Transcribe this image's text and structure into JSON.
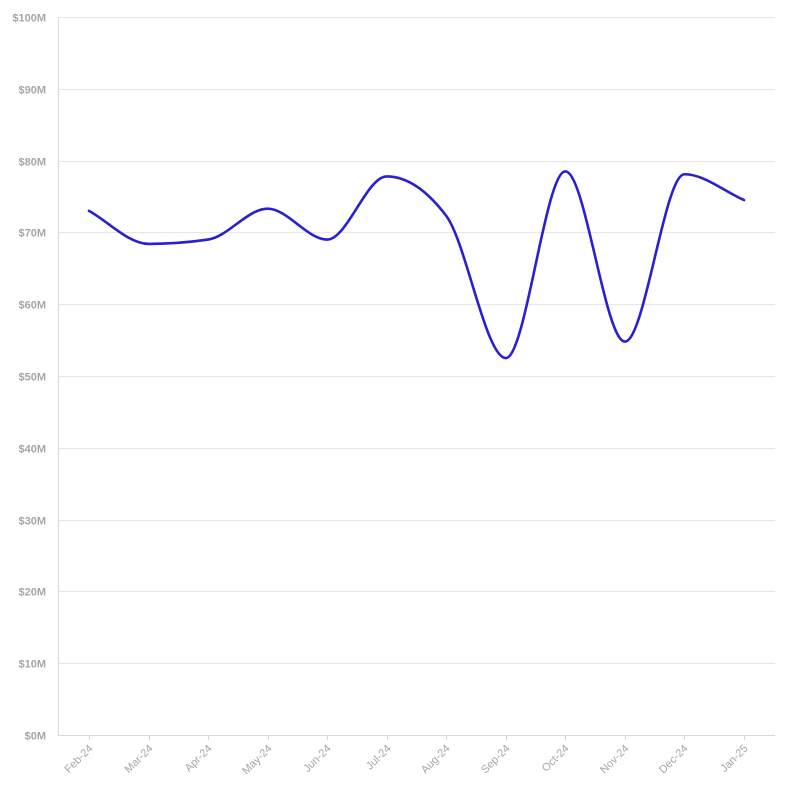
{
  "chart_data": {
    "type": "line",
    "title": "",
    "xlabel": "",
    "ylabel": "",
    "categories": [
      "Feb-24",
      "Mar-24",
      "Apr-24",
      "May-24",
      "Jun-24",
      "Jul-24",
      "Aug-24",
      "Sep-24",
      "Oct-24",
      "Nov-24",
      "Dec-24",
      "Jan-25"
    ],
    "series": [
      {
        "values": [
          73.0,
          68.4,
          69.0,
          73.3,
          69.0,
          77.8,
          72.3,
          52.5,
          78.5,
          54.8,
          78.1,
          74.5
        ],
        "color": "#2a1fd1"
      }
    ],
    "ylim": [
      0,
      100
    ],
    "y_ticks": [
      0,
      10,
      20,
      30,
      40,
      50,
      60,
      70,
      80,
      90,
      100
    ],
    "y_tick_labels": [
      "$0M",
      "$10M",
      "$20M",
      "$30M",
      "$40M",
      "$50M",
      "$60M",
      "$70M",
      "$80M",
      "$90M",
      "$100M"
    ],
    "x_tick_rotation": -45,
    "grid": true,
    "legend": "none"
  }
}
